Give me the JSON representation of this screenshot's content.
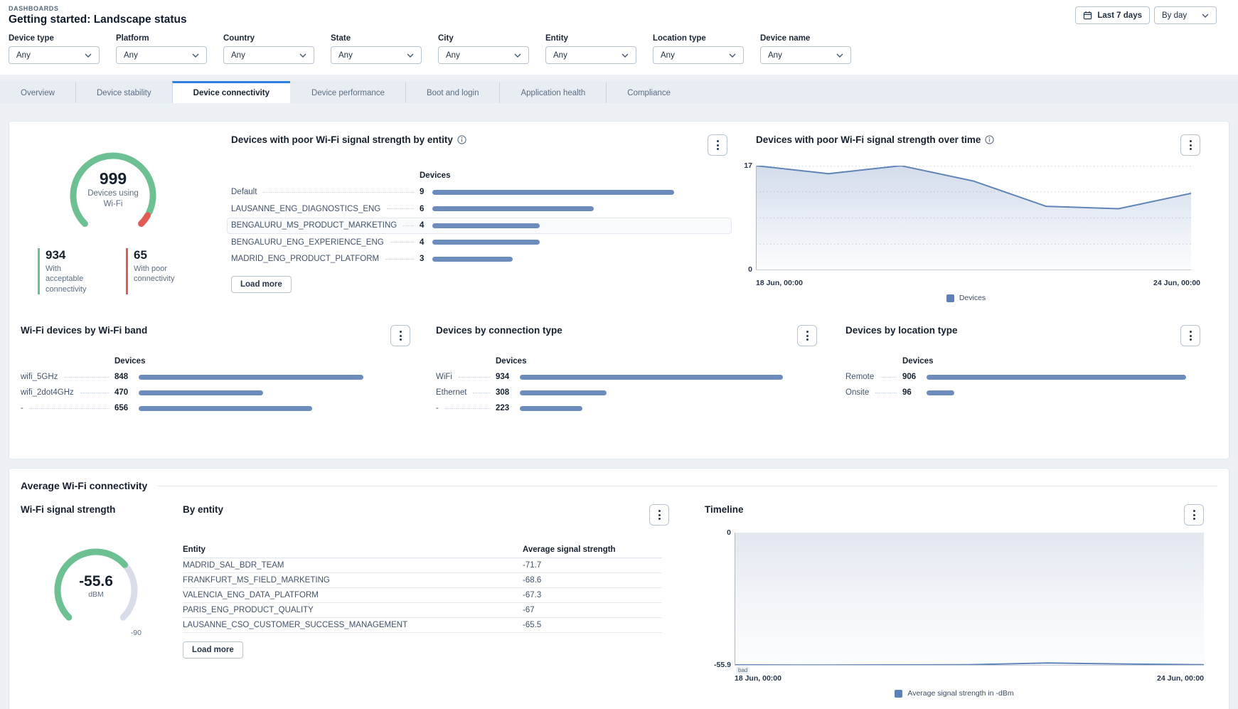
{
  "header": {
    "breadcrumb": "DASHBOARDS",
    "title": "Getting started: Landscape status",
    "date_range": "Last 7 days",
    "granularity": "By day"
  },
  "filters": [
    {
      "label": "Device type",
      "value": "Any"
    },
    {
      "label": "Platform",
      "value": "Any"
    },
    {
      "label": "Country",
      "value": "Any"
    },
    {
      "label": "State",
      "value": "Any"
    },
    {
      "label": "City",
      "value": "Any"
    },
    {
      "label": "Entity",
      "value": "Any"
    },
    {
      "label": "Location type",
      "value": "Any"
    },
    {
      "label": "Device name",
      "value": "Any"
    }
  ],
  "tabs": [
    {
      "label": "Overview",
      "active": false
    },
    {
      "label": "Device stability",
      "active": false
    },
    {
      "label": "Device connectivity",
      "active": true
    },
    {
      "label": "Device performance",
      "active": false
    },
    {
      "label": "Boot and login",
      "active": false
    },
    {
      "label": "Application health",
      "active": false
    },
    {
      "label": "Compliance",
      "active": false
    }
  ],
  "colors": {
    "bar_blue": "#6d8cbe",
    "line_blue": "#5f85b8",
    "legend_blue": "#5d81b6",
    "green": "#6cc092",
    "red": "#e25b55",
    "gauge_track": "#d8dde9",
    "tab_active_border": "#2f80df"
  },
  "panels": {
    "wifi_usage": {
      "total": "999",
      "caption_line1": "Devices using",
      "caption_line2": "Wi-Fi",
      "acceptable": {
        "value": "934",
        "label": "With acceptable connectivity"
      },
      "poor": {
        "value": "65",
        "label": "With poor connectivity"
      }
    },
    "poor_by_entity": {
      "title": "Devices with poor Wi-Fi signal strength by entity",
      "col_header": "Devices",
      "rows": [
        {
          "label": "Default",
          "value": 9,
          "highlighted": false
        },
        {
          "label": "LAUSANNE_ENG_DIAGNOSTICS_ENG",
          "value": 6,
          "highlighted": false
        },
        {
          "label": "BENGALURU_MS_PRODUCT_MARKETING",
          "value": 4,
          "highlighted": true
        },
        {
          "label": "BENGALURU_ENG_EXPERIENCE_ENG",
          "value": 4,
          "highlighted": false
        },
        {
          "label": "MADRID_ENG_PRODUCT_PLATFORM",
          "value": 3,
          "highlighted": false
        }
      ],
      "load_more": "Load more"
    },
    "poor_over_time": {
      "title": "Devices with poor Wi-Fi signal strength over time",
      "type": "area",
      "y_max": 17,
      "y_min": 0,
      "y_max_label": "17",
      "y_min_label": "0",
      "x_start": "18 Jun, 00:00",
      "x_end": "24 Jun, 00:00",
      "legend": "Devices",
      "values": [
        17,
        15.7,
        17,
        14.5,
        10.4,
        10,
        12.5
      ]
    },
    "by_band": {
      "title": "Wi-Fi devices by Wi-Fi band",
      "col_header": "Devices",
      "rows": [
        {
          "label": "wifi_5GHz",
          "value": 848
        },
        {
          "label": "wifi_2dot4GHz",
          "value": 470
        },
        {
          "label": "-",
          "value": 656
        }
      ]
    },
    "by_connection": {
      "title": "Devices by connection type",
      "col_header": "Devices",
      "rows": [
        {
          "label": "WiFi",
          "value": 934
        },
        {
          "label": "Ethernet",
          "value": 308
        },
        {
          "label": "-",
          "value": 223
        }
      ]
    },
    "by_location": {
      "title": "Devices by location type",
      "col_header": "Devices",
      "rows": [
        {
          "label": "Remote",
          "value": 906
        },
        {
          "label": "Onsite",
          "value": 96
        }
      ]
    },
    "average_section": {
      "title": "Average Wi-Fi connectivity",
      "signal_gauge": {
        "title": "Wi-Fi signal strength",
        "value": "-55.6",
        "unit": "dBM",
        "scale_min_label": "-90"
      },
      "by_entity": {
        "title": "By entity",
        "col_entity": "Entity",
        "col_value": "Average signal strength",
        "rows": [
          {
            "entity": "MADRID_SAL_BDR_TEAM",
            "value": "-71.7"
          },
          {
            "entity": "FRANKFURT_MS_FIELD_MARKETING",
            "value": "-68.6"
          },
          {
            "entity": "VALENCIA_ENG_DATA_PLATFORM",
            "value": "-67.3"
          },
          {
            "entity": "PARIS_ENG_PRODUCT_QUALITY",
            "value": "-67"
          },
          {
            "entity": "LAUSANNE_CSO_CUSTOMER_SUCCESS_MANAGEMENT",
            "value": "-65.5"
          }
        ],
        "load_more": "Load more"
      },
      "timeline": {
        "title": "Timeline",
        "type": "area",
        "y_max": 0,
        "y_min": -55.9,
        "y_top_label": "0",
        "y_bottom_label": "-55.9",
        "threshold_badge": "bad",
        "x_start": "18 Jun, 00:00",
        "x_end": "24 Jun, 00:00",
        "legend": "Average signal strength in -dBm",
        "values": [
          -55.6,
          -55.7,
          -55.6,
          -55.5,
          -54.8,
          -55.2,
          -55.5
        ]
      }
    }
  }
}
